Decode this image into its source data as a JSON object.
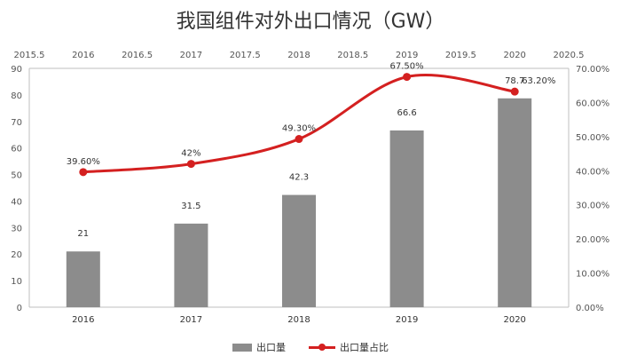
{
  "chart_data": {
    "type": "bar+line",
    "title": "我国组件对外出口情况（GW）",
    "categories": [
      "2016",
      "2017",
      "2018",
      "2019",
      "2020"
    ],
    "series": [
      {
        "name": "出口量",
        "type": "bar",
        "axis": "left",
        "values": [
          21,
          31.5,
          42.3,
          66.6,
          78.7
        ],
        "color": "#8c8c8c",
        "labels": [
          "21",
          "31.5",
          "42.3",
          "66.6",
          "78.7"
        ]
      },
      {
        "name": "出口量占比",
        "type": "line",
        "axis": "right",
        "values": [
          39.6,
          42.0,
          49.3,
          67.5,
          63.2
        ],
        "color": "#d42020",
        "labels": [
          "39.60%",
          "42%",
          "49.30%",
          "67.50%",
          "63.20%"
        ]
      }
    ],
    "left_axis": {
      "ylim": [
        0,
        90
      ],
      "ticks": [
        "0",
        "10",
        "20",
        "30",
        "40",
        "50",
        "60",
        "70",
        "80",
        "90"
      ]
    },
    "right_axis": {
      "ylim": [
        0,
        70
      ],
      "ticks": [
        "0.00%",
        "10.00%",
        "20.00%",
        "30.00%",
        "40.00%",
        "50.00%",
        "60.00%",
        "70.00%"
      ]
    },
    "top_axis": {
      "range": [
        2015.5,
        2020.5
      ],
      "ticks": [
        "2015.5",
        "2016",
        "2016.5",
        "2017",
        "2017.5",
        "2018",
        "2018.5",
        "2019",
        "2019.5",
        "2020",
        "2020.5"
      ]
    },
    "grid": false,
    "legend": "bottom"
  }
}
